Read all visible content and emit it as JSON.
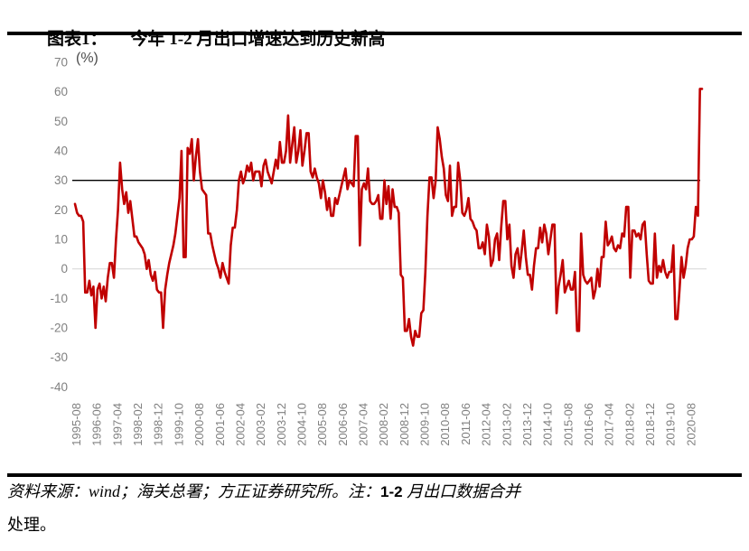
{
  "header": {
    "figure_label": "图表1：",
    "title": "今年 1-2 月出口增速达到历史新高"
  },
  "chart_data": {
    "type": "line",
    "title": "今年 1-2 月出口增速达到历史新高",
    "unit_label": "(%)",
    "ylim": [
      -40,
      70
    ],
    "y_ticks": [
      70,
      60,
      50,
      40,
      30,
      20,
      10,
      0,
      -10,
      -20,
      -30,
      -40
    ],
    "x_tick_labels": [
      "1995-08",
      "1996-06",
      "1997-04",
      "1998-02",
      "1998-12",
      "1999-10",
      "2000-08",
      "2001-06",
      "2002-04",
      "2003-02",
      "2003-12",
      "2004-10",
      "2005-08",
      "2006-06",
      "2007-04",
      "2008-02",
      "2008-12",
      "2009-10",
      "2010-08",
      "2011-06",
      "2012-04",
      "2013-02",
      "2013-12",
      "2014-10",
      "2015-08",
      "2016-06",
      "2017-04",
      "2018-02",
      "2018-12",
      "2019-10",
      "2020-08"
    ],
    "x_months_between_ticks": 10,
    "x_start": "1995-08",
    "x_end": "2021-02",
    "reference_line_y": 30,
    "zero_line": true,
    "grid": false,
    "legend": "none",
    "line_color": "#C00000",
    "reference_line_color": "#000000",
    "zero_line_color": "#D9D9D9",
    "axis_label_color": "#808080",
    "values": [
      22,
      19,
      18,
      18,
      16,
      -8,
      -8,
      -4,
      -9,
      -6,
      -20,
      -7,
      -5,
      -10,
      -6,
      -11,
      -3,
      2,
      2,
      -3,
      10,
      20,
      36,
      27,
      22,
      26,
      19,
      23,
      17,
      11,
      11,
      9,
      8,
      7,
      5,
      0,
      3,
      -2,
      -4,
      -1,
      -7,
      -8,
      -8,
      -20,
      -7,
      -2,
      2,
      5,
      8,
      12,
      18,
      24,
      40,
      4,
      4,
      41,
      39,
      44,
      30,
      38,
      44,
      33,
      27,
      26,
      25,
      12,
      12,
      8,
      5,
      2,
      0,
      -3,
      2,
      -1,
      -3,
      -5,
      8,
      14,
      14,
      20,
      30,
      33,
      29,
      31,
      35,
      33,
      36,
      30,
      33,
      33,
      33,
      28,
      35,
      37,
      33,
      31,
      29,
      33,
      37,
      34,
      43,
      36,
      36,
      40,
      52,
      36,
      42,
      48,
      36,
      40,
      47,
      35,
      40,
      46,
      46,
      33,
      31,
      34,
      31,
      29,
      24,
      30,
      26,
      20,
      24,
      18,
      18,
      24,
      22,
      25,
      28,
      31,
      34,
      27,
      30,
      29,
      28,
      45,
      45,
      8,
      27,
      29,
      27,
      34,
      23,
      22,
      22,
      23,
      25,
      17,
      17,
      30,
      22,
      28,
      17,
      27,
      21,
      21,
      19,
      -2,
      -3,
      -21,
      -21,
      -17,
      -23,
      -26,
      -21,
      -23,
      -23,
      -15,
      -14,
      -1,
      18,
      31,
      31,
      24,
      30,
      48,
      44,
      38,
      34,
      25,
      23,
      35,
      18,
      21,
      21,
      36,
      30,
      19,
      18,
      20,
      24,
      17,
      16,
      14,
      13,
      7,
      7,
      9,
      5,
      15,
      11,
      1,
      3,
      10,
      12,
      3,
      14,
      23,
      23,
      10,
      15,
      1,
      -3,
      5,
      7,
      0,
      6,
      13,
      4,
      -2,
      -2,
      -7,
      1,
      7,
      7,
      14,
      9,
      15,
      12,
      5,
      10,
      15,
      15,
      -15,
      -6,
      -2,
      3,
      -8,
      -6,
      -4,
      -7,
      -7,
      -1,
      -21,
      -21,
      12,
      -2,
      -4,
      -5,
      -4,
      -3,
      -10,
      -7,
      0,
      -6,
      4,
      4,
      16,
      8,
      9,
      11,
      7,
      6,
      8,
      7,
      12,
      11,
      21,
      21,
      -3,
      13,
      13,
      11,
      12,
      10,
      15,
      16,
      5,
      -4,
      -5,
      -5,
      12,
      -3,
      1,
      -1,
      3,
      -1,
      -3,
      -1,
      -1,
      8,
      -17,
      -17,
      -7,
      4,
      -3,
      1,
      7,
      10,
      10,
      11,
      21,
      18,
      61,
      61
    ],
    "peak_value": 60.6,
    "trough_value": -26
  },
  "footer": {
    "source_prefix": "资料来源：wind；海关总署；方正证券研究所。注：",
    "bold_fragment": "1-2",
    "suffix": " 月出口数据合并",
    "line2": "处理。"
  }
}
